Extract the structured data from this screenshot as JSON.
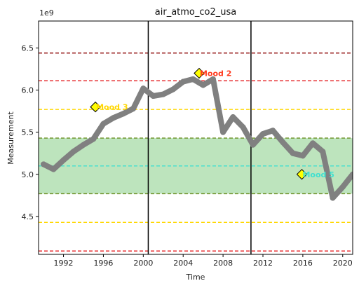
{
  "chart_data": {
    "type": "line",
    "title": "air_atmo_co2_usa",
    "xlabel": "Time",
    "ylabel": "Measurement",
    "y_multiplier_label": "1e9",
    "xlim": [
      1989.5,
      2021.0
    ],
    "ylim": [
      4.05,
      6.82
    ],
    "x_ticks": [
      1992,
      1996,
      2000,
      2004,
      2008,
      2012,
      2016,
      2020
    ],
    "y_ticks": [
      4.5,
      5.0,
      5.5,
      6.0,
      6.5
    ],
    "y_tick_labels": [
      "4.5",
      "5.0",
      "5.5",
      "6.0",
      "6.5"
    ],
    "grid": false,
    "series": [
      {
        "color": "#808080",
        "x": [
          1990.0,
          1991.0,
          1992.0,
          1993.0,
          1994.0,
          1995.0,
          1996.0,
          1997.0,
          1998.0,
          1999.0,
          2000.0,
          2001.0,
          2002.0,
          2003.0,
          2004.0,
          2005.0,
          2006.0,
          2007.0,
          2008.0,
          2009.0,
          2010.0,
          2011.0,
          2012.0,
          2013.0,
          2014.0,
          2015.0,
          2016.0,
          2017.0,
          2018.0,
          2019.0,
          2020.0,
          2021.0
        ],
        "y": [
          5.12,
          5.06,
          5.17,
          5.27,
          5.35,
          5.42,
          5.6,
          5.67,
          5.72,
          5.78,
          6.02,
          5.93,
          5.95,
          6.01,
          6.1,
          6.13,
          6.06,
          6.13,
          5.5,
          5.68,
          5.56,
          5.35,
          5.48,
          5.52,
          5.38,
          5.25,
          5.22,
          5.37,
          5.27,
          4.72,
          4.85,
          5.0
        ]
      }
    ],
    "vertical_lines": [
      {
        "x": 2000.5,
        "color": "#000000"
      },
      {
        "x": 2010.8,
        "color": "#000000"
      }
    ],
    "horizontal_lines": [
      {
        "y": 6.44,
        "color": "#8b0000"
      },
      {
        "y": 6.11,
        "color": "#e41a1c"
      },
      {
        "y": 5.77,
        "color": "#ffd700"
      },
      {
        "y": 5.43,
        "color": "#6b8e23"
      },
      {
        "y": 5.1,
        "color": "#40e0d0"
      },
      {
        "y": 4.77,
        "color": "#6b8e23"
      },
      {
        "y": 4.43,
        "color": "#ffd700"
      },
      {
        "y": 4.09,
        "color": "#e41a1c"
      }
    ],
    "band": {
      "y_from": 4.77,
      "y_to": 5.43,
      "color": "#b2dfb2"
    },
    "annotations": [
      {
        "label": "Mood 3",
        "x": 1995.2,
        "y": 5.8,
        "color": "#ffd700"
      },
      {
        "label": "Mood 2",
        "x": 2005.6,
        "y": 6.2,
        "color": "#ff3b1f"
      },
      {
        "label": "Mood 5",
        "x": 2015.9,
        "y": 5.0,
        "color": "#40e0d0"
      }
    ]
  }
}
